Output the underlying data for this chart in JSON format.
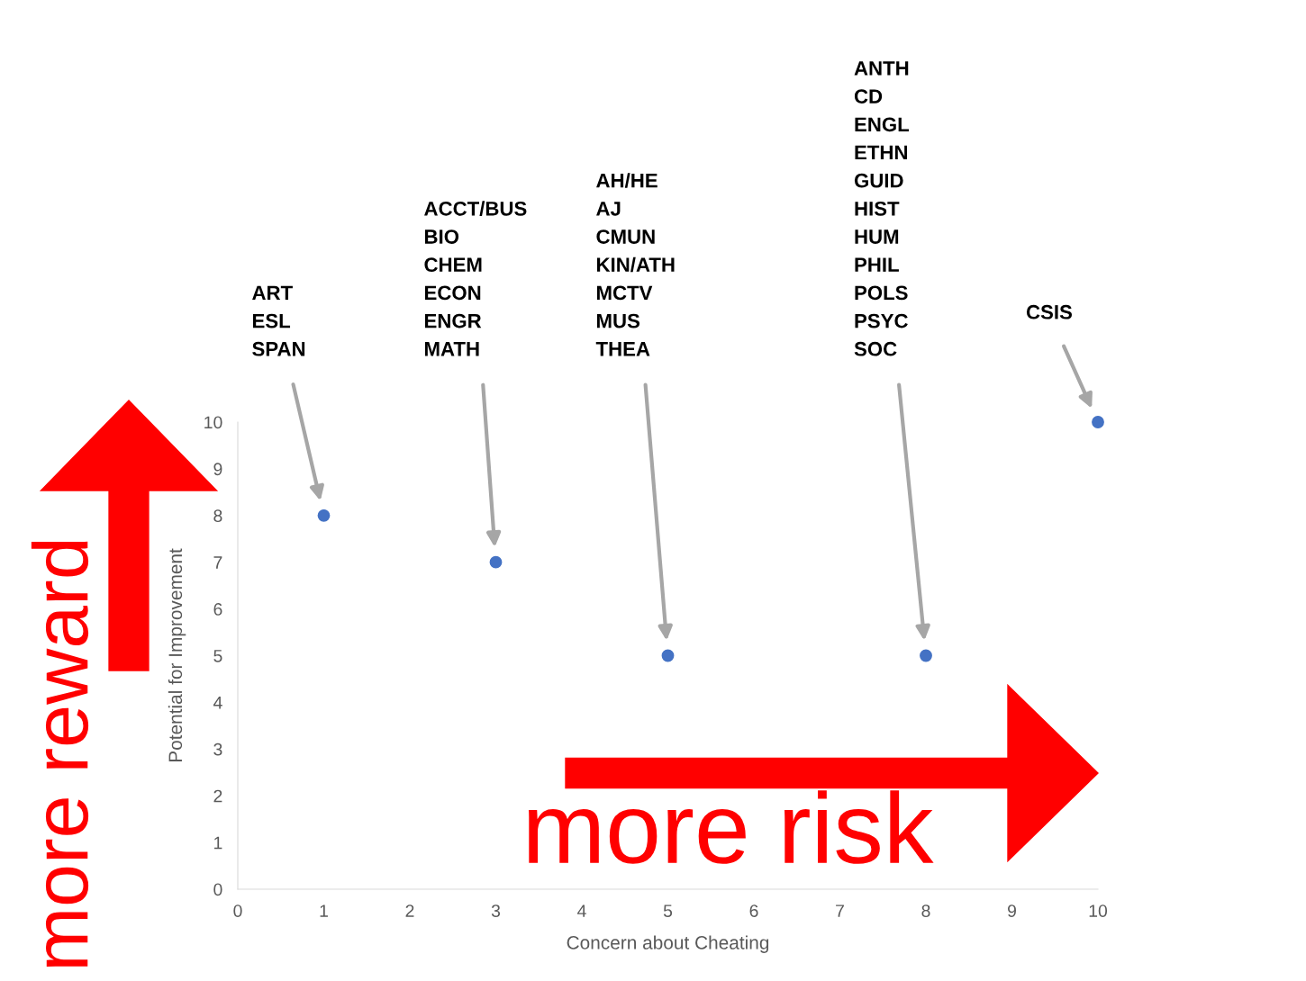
{
  "chart_data": {
    "type": "scatter",
    "xlabel": "Concern about Cheating",
    "ylabel": "Potential for Improvement",
    "x": [
      1,
      3,
      5,
      8,
      10
    ],
    "values": [
      8,
      7,
      5,
      5,
      10
    ],
    "color": "#4472c4",
    "marker": "circle",
    "xlim": [
      0,
      10
    ],
    "ylim": [
      0,
      10
    ],
    "xticks": [
      0,
      1,
      2,
      3,
      4,
      5,
      6,
      7,
      8,
      9,
      10
    ],
    "yticks": [
      0,
      1,
      2,
      3,
      4,
      5,
      6,
      7,
      8,
      9,
      10
    ],
    "grid": false,
    "legend": false,
    "annotations": [
      "ART\nESL\nSPAN",
      "ACCT/BUS\nBIO\nCHEM\nECON\nENGR\nMATH",
      "AH/HE\nAJ\nCMUN\nKIN/ATH\nMCTV\nMUS\nTHEA",
      "ANTH\nCD\nENGL\nETHN\nGUID\nHIST\nHUM\nPHIL\nPOLS\nPSYC\nSOC",
      "CSIS",
      "more reward",
      "more risk"
    ]
  }
}
